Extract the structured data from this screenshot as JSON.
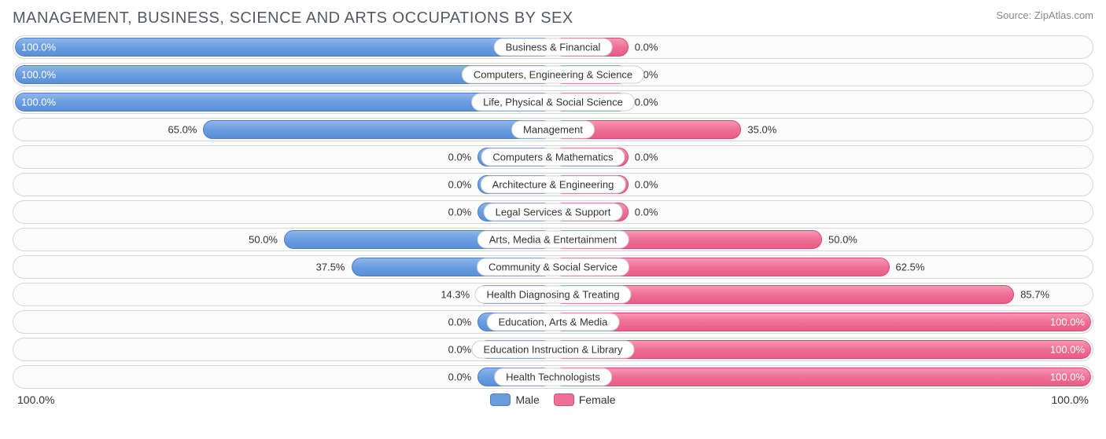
{
  "title": "MANAGEMENT, BUSINESS, SCIENCE AND ARTS OCCUPATIONS BY SEX",
  "source": "Source: ZipAtlas.com",
  "axis": {
    "left": "100.0%",
    "right": "100.0%"
  },
  "legend": {
    "male": "Male",
    "female": "Female"
  },
  "colors": {
    "male_bar": "#6a9de0",
    "female_bar": "#ef6f96",
    "row_bg": "#fbfbfb",
    "row_border": "#d6d6d6",
    "text": "#333333",
    "title_color": "#555a60",
    "source_color": "#888888"
  },
  "chart": {
    "type": "diverging-bar",
    "min_bar_pct": 14,
    "rows": [
      {
        "category": "Business & Financial",
        "male": 100.0,
        "female": 0.0,
        "male_label": "100.0%",
        "female_label": "0.0%"
      },
      {
        "category": "Computers, Engineering & Science",
        "male": 100.0,
        "female": 0.0,
        "male_label": "100.0%",
        "female_label": "0.0%"
      },
      {
        "category": "Life, Physical & Social Science",
        "male": 100.0,
        "female": 0.0,
        "male_label": "100.0%",
        "female_label": "0.0%"
      },
      {
        "category": "Management",
        "male": 65.0,
        "female": 35.0,
        "male_label": "65.0%",
        "female_label": "35.0%"
      },
      {
        "category": "Computers & Mathematics",
        "male": 0.0,
        "female": 0.0,
        "male_label": "0.0%",
        "female_label": "0.0%"
      },
      {
        "category": "Architecture & Engineering",
        "male": 0.0,
        "female": 0.0,
        "male_label": "0.0%",
        "female_label": "0.0%"
      },
      {
        "category": "Legal Services & Support",
        "male": 0.0,
        "female": 0.0,
        "male_label": "0.0%",
        "female_label": "0.0%"
      },
      {
        "category": "Arts, Media & Entertainment",
        "male": 50.0,
        "female": 50.0,
        "male_label": "50.0%",
        "female_label": "50.0%"
      },
      {
        "category": "Community & Social Service",
        "male": 37.5,
        "female": 62.5,
        "male_label": "37.5%",
        "female_label": "62.5%"
      },
      {
        "category": "Health Diagnosing & Treating",
        "male": 14.3,
        "female": 85.7,
        "male_label": "14.3%",
        "female_label": "85.7%"
      },
      {
        "category": "Education, Arts & Media",
        "male": 0.0,
        "female": 100.0,
        "male_label": "0.0%",
        "female_label": "100.0%"
      },
      {
        "category": "Education Instruction & Library",
        "male": 0.0,
        "female": 100.0,
        "male_label": "0.0%",
        "female_label": "100.0%"
      },
      {
        "category": "Health Technologists",
        "male": 0.0,
        "female": 100.0,
        "male_label": "0.0%",
        "female_label": "100.0%"
      }
    ]
  }
}
